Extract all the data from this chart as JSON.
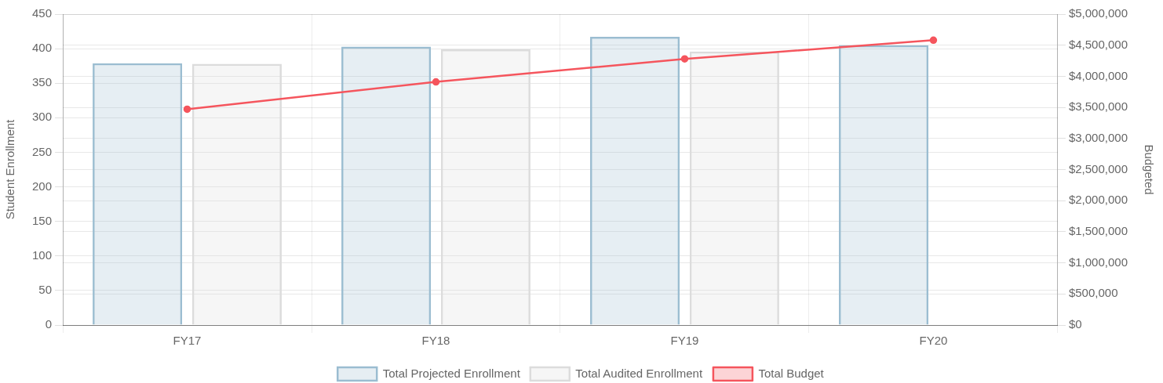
{
  "chart_data": {
    "type": "bar",
    "categories": [
      "FY17",
      "FY18",
      "FY19",
      "FY20"
    ],
    "series": [
      {
        "name": "Total Projected Enrollment",
        "color": "#9bbdd1",
        "values": [
          379,
          403,
          417,
          405
        ]
      },
      {
        "name": "Total Audited Enrollment",
        "color": "#dcdcdc",
        "values": [
          378,
          399,
          396,
          null
        ]
      },
      {
        "name": "Total Budget",
        "type": "line",
        "axis": "y2",
        "color": "#f5555d",
        "values": [
          3470000,
          3910000,
          4280000,
          4580000
        ]
      }
    ],
    "ylabel": "Student Enrollment",
    "y2label": "Budgeted",
    "ylim": [
      0,
      450
    ],
    "yticks": [
      0,
      50,
      100,
      150,
      200,
      250,
      300,
      350,
      400,
      450
    ],
    "y2lim": [
      0,
      5000000
    ],
    "y2ticks": [
      {
        "value": 0,
        "label": "$0"
      },
      {
        "value": 500000,
        "label": "$500,000"
      },
      {
        "value": 1000000,
        "label": "$1,000,000"
      },
      {
        "value": 1500000,
        "label": "$1,500,000"
      },
      {
        "value": 2000000,
        "label": "$2,000,000"
      },
      {
        "value": 2500000,
        "label": "$2,500,000"
      },
      {
        "value": 3000000,
        "label": "$3,000,000"
      },
      {
        "value": 3500000,
        "label": "$3,500,000"
      },
      {
        "value": 4000000,
        "label": "$4,000,000"
      },
      {
        "value": 4500000,
        "label": "$4,500,000"
      },
      {
        "value": 5000000,
        "label": "$5,000,000"
      }
    ],
    "grid": true,
    "legend": "bottom",
    "marker": "circle",
    "line_style": "solid"
  }
}
